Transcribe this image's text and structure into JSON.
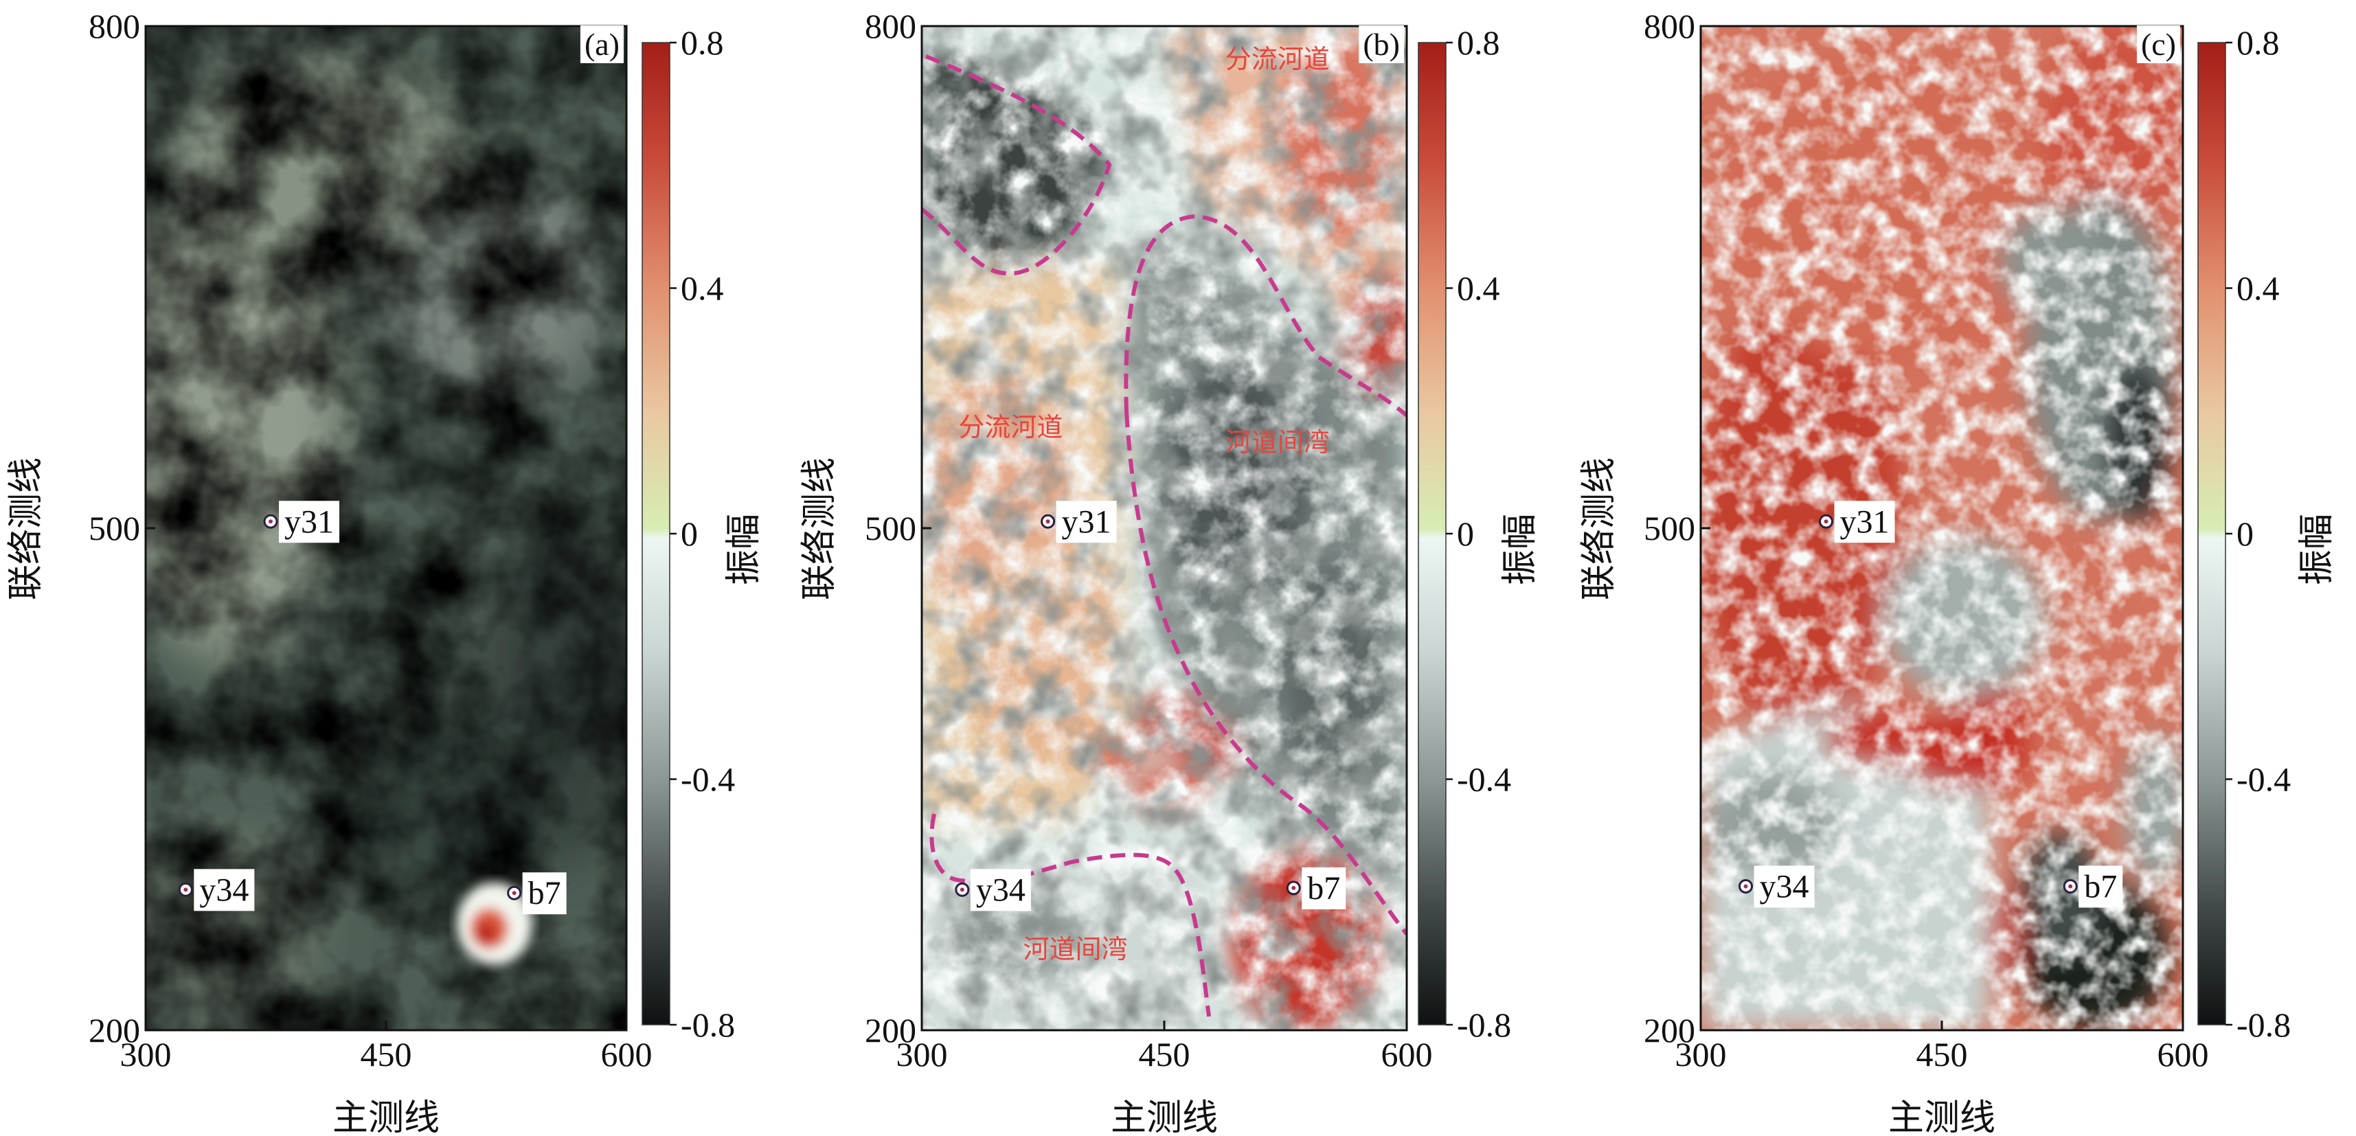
{
  "chart_data": [
    {
      "panel_label": "(a)",
      "type": "heatmap",
      "colormap": "diverging: black-gray-white (negative) to green-red (positive)",
      "xlabel": "主测线",
      "ylabel": "联络测线",
      "xlim": [
        300,
        600
      ],
      "ylim": [
        200,
        800
      ],
      "xticks": [
        "300",
        "450",
        "600"
      ],
      "yticks": [
        "800",
        "500",
        "200"
      ],
      "colorbar": {
        "label": "振幅",
        "range": [
          -0.8,
          0.8
        ],
        "ticks": [
          "0.8",
          "0.4",
          "0",
          "-0.4",
          "-0.8"
        ]
      },
      "wells": [
        {
          "name": "y31",
          "x": 378,
          "y": 504
        },
        {
          "name": "y34",
          "x": 325,
          "y": 284
        },
        {
          "name": "b7",
          "x": 530,
          "y": 282
        }
      ],
      "annotations": [],
      "dominant_amplitude": "weak negative (-0.1 to -0.4) across most of map; strong positive anomaly near b7"
    },
    {
      "panel_label": "(b)",
      "type": "heatmap",
      "colormap": "diverging: black-gray-white (negative) to green-red (positive)",
      "xlabel": "主测线",
      "ylabel": "联络测线",
      "xlim": [
        300,
        600
      ],
      "ylim": [
        200,
        800
      ],
      "xticks": [
        "300",
        "450",
        "600"
      ],
      "yticks": [
        "800",
        "500",
        "200"
      ],
      "colorbar": {
        "label": "振幅",
        "range": [
          -0.8,
          0.8
        ],
        "ticks": [
          "0.8",
          "0.4",
          "0",
          "-0.4",
          "-0.8"
        ]
      },
      "wells": [
        {
          "name": "y31",
          "x": 378,
          "y": 504
        },
        {
          "name": "y34",
          "x": 325,
          "y": 284
        },
        {
          "name": "b7",
          "x": 530,
          "y": 285
        }
      ],
      "annotations": [
        {
          "text": "分流河道",
          "x": 520,
          "y": 775
        },
        {
          "text": "分流河道",
          "x": 355,
          "y": 555
        },
        {
          "text": "河道间湾",
          "x": 520,
          "y": 546
        },
        {
          "text": "河道间湾",
          "x": 395,
          "y": 243
        }
      ],
      "dominant_amplitude": "mixed: positive channels (0.2 to 0.6) on west, negative interchannel bay (-0.2 to -0.6) center-east"
    },
    {
      "panel_label": "(c)",
      "type": "heatmap",
      "colormap": "diverging: black-gray-white (negative) to green-red (positive)",
      "xlabel": "主测线",
      "ylabel": "联络测线",
      "xlim": [
        300,
        600
      ],
      "ylim": [
        200,
        800
      ],
      "xticks": [
        "300",
        "450",
        "600"
      ],
      "yticks": [
        "800",
        "500",
        "200"
      ],
      "colorbar": {
        "label": "振幅",
        "range": [
          -0.8,
          0.8
        ],
        "ticks": [
          "0.8",
          "0.4",
          "0",
          "-0.4",
          "-0.8"
        ]
      },
      "wells": [
        {
          "name": "y31",
          "x": 378,
          "y": 504
        },
        {
          "name": "y34",
          "x": 328,
          "y": 286
        },
        {
          "name": "b7",
          "x": 530,
          "y": 286
        }
      ],
      "annotations": [],
      "dominant_amplitude": "mostly positive (0.3 to 0.7) in west and north; negative (-0.3 to -0.8) in southeast near b7"
    }
  ]
}
